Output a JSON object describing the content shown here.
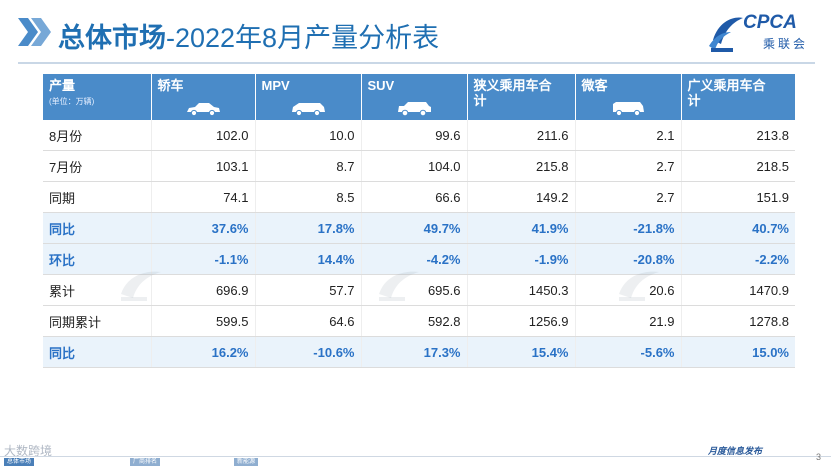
{
  "slide": {
    "title_bold": "总体市场",
    "title_rest": "-2022年8月产量分析表",
    "logo_main": "CPCA",
    "logo_sub": "乘联会"
  },
  "table": {
    "header": {
      "first_label": "产量",
      "first_unit": "(单位：万辆)",
      "columns": [
        {
          "label": "轿车",
          "icon": "sedan-icon"
        },
        {
          "label": "MPV",
          "icon": "mpv-icon"
        },
        {
          "label": "SUV",
          "icon": "suv-icon"
        },
        {
          "label": "狭义乘用车合计",
          "icon": ""
        },
        {
          "label": "微客",
          "icon": "minivan-icon"
        },
        {
          "label": "广义乘用车合计",
          "icon": ""
        }
      ]
    },
    "rows": [
      {
        "label": "8月份",
        "values": [
          "102.0",
          "10.0",
          "99.6",
          "211.6",
          "2.1",
          "213.8"
        ]
      },
      {
        "label": "7月份",
        "values": [
          "103.1",
          "8.7",
          "104.0",
          "215.8",
          "2.7",
          "218.5"
        ]
      },
      {
        "label": "同期",
        "values": [
          "74.1",
          "8.5",
          "66.6",
          "149.2",
          "2.7",
          "151.9"
        ]
      },
      {
        "label": "同比",
        "values": [
          "37.6%",
          "17.8%",
          "49.7%",
          "41.9%",
          "-21.8%",
          "40.7%"
        ]
      },
      {
        "label": "环比",
        "values": [
          "-1.1%",
          "14.4%",
          "-4.2%",
          "-1.9%",
          "-20.8%",
          "-2.2%"
        ]
      },
      {
        "label": "累计",
        "values": [
          "696.9",
          "57.7",
          "695.6",
          "1450.3",
          "20.6",
          "1470.9"
        ]
      },
      {
        "label": "同期累计",
        "values": [
          "599.5",
          "64.6",
          "592.8",
          "1256.9",
          "21.9",
          "1278.8"
        ]
      },
      {
        "label": "同比",
        "values": [
          "16.2%",
          "-10.6%",
          "17.3%",
          "15.4%",
          "-5.6%",
          "15.0%"
        ]
      }
    ]
  },
  "footer": {
    "brand": "大数跨境",
    "segment_1": "总体市场",
    "segment_2": "厂商排名",
    "segment_3": "新能源",
    "publisher": "月度信息发布",
    "page": "3"
  },
  "colors": {
    "title": "#1f6fb2",
    "header_bg": "#4a8bc9",
    "highlight_text": "#2a72c6",
    "highlight_bg": "#eaf3fb"
  }
}
